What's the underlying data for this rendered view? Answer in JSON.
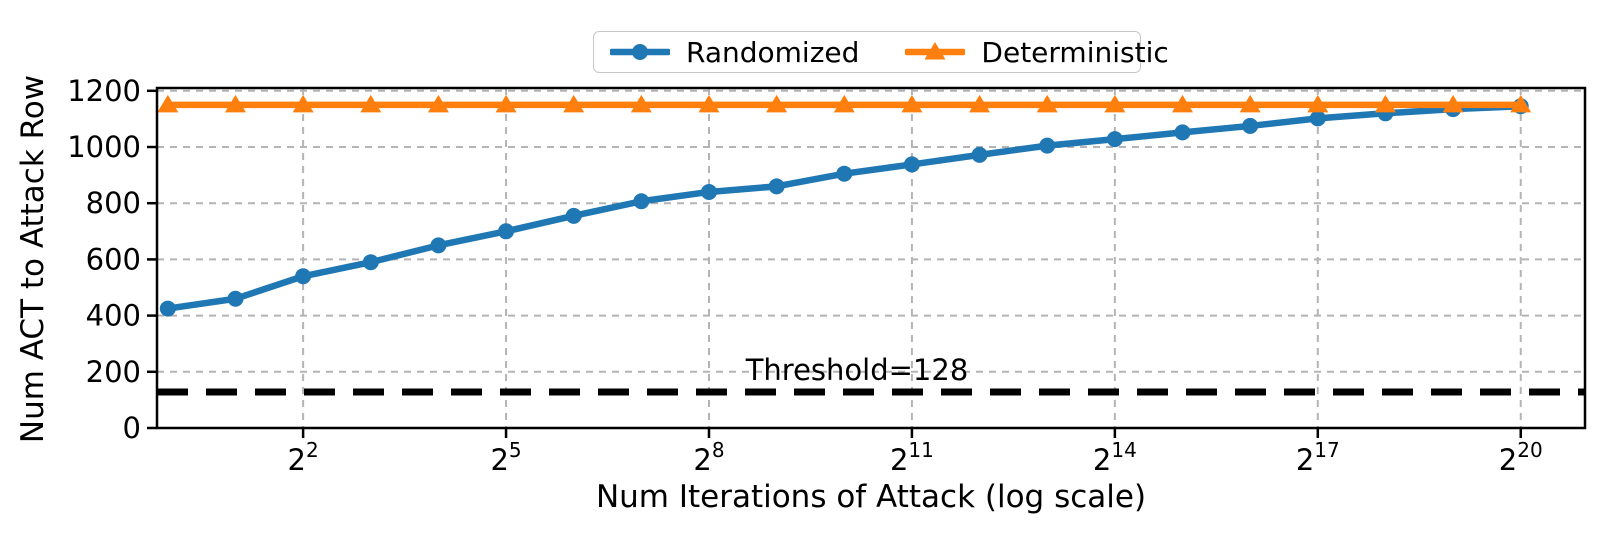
{
  "figure": {
    "background": "#ffffff",
    "text_color": "#000000"
  },
  "chart_data": {
    "type": "line",
    "title": "",
    "xlabel": "Num Iterations of Attack (log scale)",
    "ylabel": "Num ACT to Attack Row",
    "x_scale": "log2",
    "x_exponents": [
      0,
      1,
      2,
      3,
      4,
      5,
      6,
      7,
      8,
      9,
      10,
      11,
      12,
      13,
      14,
      15,
      16,
      17,
      18,
      19,
      20
    ],
    "x_tick_base": "2",
    "x_tick_exponents": [
      2,
      5,
      8,
      11,
      14,
      17,
      20
    ],
    "xlim_exponents": [
      -0.16,
      20.95
    ],
    "ylim": [
      0,
      1210
    ],
    "y_ticks": [
      0,
      200,
      400,
      600,
      800,
      1000,
      1200
    ],
    "grid": true,
    "grid_color": "#b4b4b4",
    "legend_position": "top-center",
    "series": [
      {
        "name": "Randomized",
        "color": "#1f77b4",
        "marker": "circle",
        "values": [
          425,
          460,
          540,
          590,
          650,
          700,
          755,
          807,
          840,
          860,
          905,
          938,
          972,
          1005,
          1028,
          1052,
          1075,
          1102,
          1120,
          1135,
          1145
        ]
      },
      {
        "name": "Deterministic",
        "color": "#ff7f0e",
        "marker": "triangle",
        "values": [
          1150,
          1150,
          1150,
          1150,
          1150,
          1150,
          1150,
          1150,
          1150,
          1150,
          1150,
          1150,
          1150,
          1150,
          1150,
          1150,
          1150,
          1150,
          1150,
          1150,
          1150
        ]
      }
    ],
    "threshold": {
      "value": 128,
      "label": "Threshold=128",
      "color": "#000000",
      "style": "dashed"
    }
  }
}
